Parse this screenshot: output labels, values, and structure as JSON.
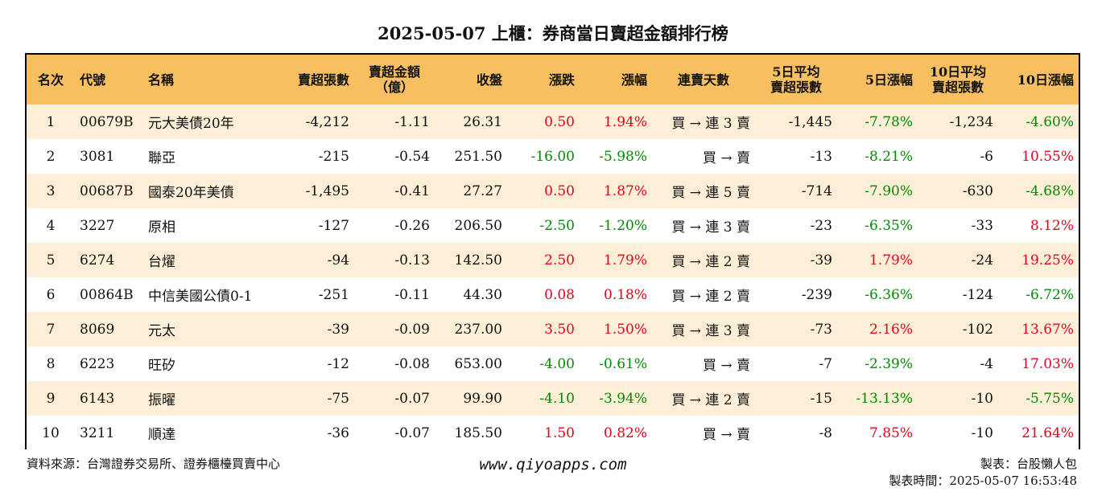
{
  "title": "2025-05-07 上櫃：券商當日賣超金額排行榜",
  "headers": {
    "rank": "名次",
    "code": "代號",
    "name": "名稱",
    "sell_shares": "賣超張數",
    "sell_amount_l1": "賣超金額",
    "sell_amount_l2": "（億）",
    "close": "收盤",
    "change": "漲跌",
    "change_pct": "漲幅",
    "streak": "連賣天數",
    "avg5_l1": "5日平均",
    "avg5_l2": "賣超張數",
    "pct5": "5日漲幅",
    "avg10_l1": "10日平均",
    "avg10_l2": "賣超張數",
    "pct10": "10日漲幅"
  },
  "rows": [
    {
      "rank": "1",
      "code": "00679B",
      "name": "元大美債20年",
      "sell_shares": "-4,212",
      "sell_amount": "-1.11",
      "close": "26.31",
      "change": "0.50",
      "change_color": "red",
      "change_pct": "1.94%",
      "change_pct_color": "red",
      "streak": "買 → 連 3 賣",
      "avg5": "-1,445",
      "pct5": "-7.78%",
      "pct5_color": "green",
      "avg10": "-1,234",
      "pct10": "-4.60%",
      "pct10_color": "green"
    },
    {
      "rank": "2",
      "code": "3081",
      "name": "聯亞",
      "sell_shares": "-215",
      "sell_amount": "-0.54",
      "close": "251.50",
      "change": "-16.00",
      "change_color": "green",
      "change_pct": "-5.98%",
      "change_pct_color": "green",
      "streak": "買 → 賣",
      "avg5": "-13",
      "pct5": "-8.21%",
      "pct5_color": "green",
      "avg10": "-6",
      "pct10": "10.55%",
      "pct10_color": "red"
    },
    {
      "rank": "3",
      "code": "00687B",
      "name": "國泰20年美債",
      "sell_shares": "-1,495",
      "sell_amount": "-0.41",
      "close": "27.27",
      "change": "0.50",
      "change_color": "red",
      "change_pct": "1.87%",
      "change_pct_color": "red",
      "streak": "買 → 連 5 賣",
      "avg5": "-714",
      "pct5": "-7.90%",
      "pct5_color": "green",
      "avg10": "-630",
      "pct10": "-4.68%",
      "pct10_color": "green"
    },
    {
      "rank": "4",
      "code": "3227",
      "name": "原相",
      "sell_shares": "-127",
      "sell_amount": "-0.26",
      "close": "206.50",
      "change": "-2.50",
      "change_color": "green",
      "change_pct": "-1.20%",
      "change_pct_color": "green",
      "streak": "買 → 連 3 賣",
      "avg5": "-23",
      "pct5": "-6.35%",
      "pct5_color": "green",
      "avg10": "-33",
      "pct10": "8.12%",
      "pct10_color": "red"
    },
    {
      "rank": "5",
      "code": "6274",
      "name": "台燿",
      "sell_shares": "-94",
      "sell_amount": "-0.13",
      "close": "142.50",
      "change": "2.50",
      "change_color": "red",
      "change_pct": "1.79%",
      "change_pct_color": "red",
      "streak": "買 → 連 2 賣",
      "avg5": "-39",
      "pct5": "1.79%",
      "pct5_color": "red",
      "avg10": "-24",
      "pct10": "19.25%",
      "pct10_color": "red"
    },
    {
      "rank": "6",
      "code": "00864B",
      "name": "中信美國公債0-1",
      "sell_shares": "-251",
      "sell_amount": "-0.11",
      "close": "44.30",
      "change": "0.08",
      "change_color": "red",
      "change_pct": "0.18%",
      "change_pct_color": "red",
      "streak": "買 → 連 2 賣",
      "avg5": "-239",
      "pct5": "-6.36%",
      "pct5_color": "green",
      "avg10": "-124",
      "pct10": "-6.72%",
      "pct10_color": "green"
    },
    {
      "rank": "7",
      "code": "8069",
      "name": "元太",
      "sell_shares": "-39",
      "sell_amount": "-0.09",
      "close": "237.00",
      "change": "3.50",
      "change_color": "red",
      "change_pct": "1.50%",
      "change_pct_color": "red",
      "streak": "買 → 連 3 賣",
      "avg5": "-73",
      "pct5": "2.16%",
      "pct5_color": "red",
      "avg10": "-102",
      "pct10": "13.67%",
      "pct10_color": "red"
    },
    {
      "rank": "8",
      "code": "6223",
      "name": "旺矽",
      "sell_shares": "-12",
      "sell_amount": "-0.08",
      "close": "653.00",
      "change": "-4.00",
      "change_color": "green",
      "change_pct": "-0.61%",
      "change_pct_color": "green",
      "streak": "買 → 賣",
      "avg5": "-7",
      "pct5": "-2.39%",
      "pct5_color": "green",
      "avg10": "-4",
      "pct10": "17.03%",
      "pct10_color": "red"
    },
    {
      "rank": "9",
      "code": "6143",
      "name": "振曜",
      "sell_shares": "-75",
      "sell_amount": "-0.07",
      "close": "99.90",
      "change": "-4.10",
      "change_color": "green",
      "change_pct": "-3.94%",
      "change_pct_color": "green",
      "streak": "買 → 連 2 賣",
      "avg5": "-15",
      "pct5": "-13.13%",
      "pct5_color": "green",
      "avg10": "-10",
      "pct10": "-5.75%",
      "pct10_color": "green"
    },
    {
      "rank": "10",
      "code": "3211",
      "name": "順達",
      "sell_shares": "-36",
      "sell_amount": "-0.07",
      "close": "185.50",
      "change": "1.50",
      "change_color": "red",
      "change_pct": "0.82%",
      "change_pct_color": "red",
      "streak": "買 → 賣",
      "avg5": "-8",
      "pct5": "7.85%",
      "pct5_color": "red",
      "avg10": "-10",
      "pct10": "21.64%",
      "pct10_color": "red"
    }
  ],
  "footer": {
    "source": "資料來源：台灣證券交易所、證券櫃檯買賣中心",
    "website": "www.qiyoapps.com",
    "maker": "製表：台股懶人包",
    "time": "製表時間：2025-05-07 16:53:48"
  }
}
